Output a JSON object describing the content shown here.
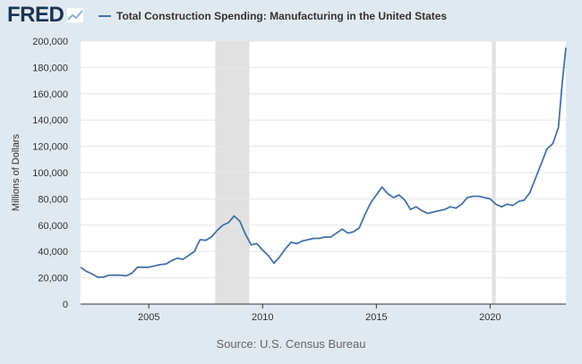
{
  "header": {
    "logo_text": "FRED",
    "logo_icon": "line-chart-icon"
  },
  "colors": {
    "background": "#e1e9f0",
    "plot_background": "#ffffff",
    "series": "#4572a7",
    "recession": "#e1e1e1",
    "logo": "#1b3451"
  },
  "source_text": "Source: U.S. Census Bureau",
  "chart_data": {
    "type": "line",
    "title": "Total Construction Spending: Manufacturing in the United States",
    "xlabel": "",
    "ylabel": "Millions of Dollars",
    "xlim": [
      2002.0,
      2023.33
    ],
    "ylim": [
      0,
      200000
    ],
    "x_ticks": [
      2005,
      2010,
      2015,
      2020
    ],
    "x_tick_labels": [
      "2005",
      "2010",
      "2015",
      "2020"
    ],
    "y_ticks": [
      0,
      20000,
      40000,
      60000,
      80000,
      100000,
      120000,
      140000,
      160000,
      180000,
      200000
    ],
    "y_tick_labels": [
      "0",
      "20,000",
      "40,000",
      "60,000",
      "80,000",
      "100,000",
      "120,000",
      "140,000",
      "160,000",
      "180,000",
      "200,000"
    ],
    "grid": "horizontal",
    "legend": "top",
    "recessions": [
      [
        2007.92,
        2009.42
      ],
      [
        2020.08,
        2020.25
      ]
    ],
    "series": [
      {
        "name": "Total Construction Spending: Manufacturing in the United States",
        "x": [
          2002.0,
          2002.25,
          2002.5,
          2002.75,
          2003.0,
          2003.25,
          2003.5,
          2003.75,
          2004.0,
          2004.25,
          2004.5,
          2004.75,
          2005.0,
          2005.25,
          2005.5,
          2005.75,
          2006.0,
          2006.25,
          2006.5,
          2006.75,
          2007.0,
          2007.25,
          2007.5,
          2007.75,
          2008.0,
          2008.25,
          2008.5,
          2008.75,
          2009.0,
          2009.25,
          2009.5,
          2009.75,
          2010.0,
          2010.25,
          2010.5,
          2010.75,
          2011.0,
          2011.25,
          2011.5,
          2011.75,
          2012.0,
          2012.25,
          2012.5,
          2012.75,
          2013.0,
          2013.25,
          2013.5,
          2013.75,
          2014.0,
          2014.25,
          2014.5,
          2014.75,
          2015.0,
          2015.25,
          2015.5,
          2015.75,
          2016.0,
          2016.25,
          2016.5,
          2016.75,
          2017.0,
          2017.25,
          2017.5,
          2017.75,
          2018.0,
          2018.25,
          2018.5,
          2018.75,
          2019.0,
          2019.25,
          2019.5,
          2019.75,
          2020.0,
          2020.25,
          2020.5,
          2020.75,
          2021.0,
          2021.25,
          2021.5,
          2021.75,
          2022.0,
          2022.25,
          2022.5,
          2022.75,
          2023.0,
          2023.17,
          2023.33
        ],
        "values": [
          28000,
          25000,
          23000,
          20500,
          20500,
          22000,
          22000,
          22000,
          21500,
          23500,
          28000,
          28000,
          28000,
          29000,
          30000,
          30500,
          33000,
          35000,
          34000,
          37000,
          40000,
          49000,
          48500,
          51000,
          56000,
          60000,
          62000,
          67000,
          63000,
          53000,
          45000,
          46000,
          41000,
          37000,
          31000,
          36000,
          42000,
          47000,
          46000,
          48000,
          49000,
          50000,
          50000,
          51000,
          51000,
          54000,
          57000,
          54000,
          55000,
          58000,
          68000,
          77000,
          83000,
          89000,
          84000,
          81000,
          83000,
          79000,
          72000,
          74000,
          71000,
          69000,
          70000,
          71000,
          72000,
          74000,
          73000,
          76000,
          81000,
          82000,
          82000,
          81000,
          80000,
          76000,
          74000,
          76000,
          75000,
          78000,
          79000,
          85000,
          96000,
          107000,
          118000,
          122000,
          134000,
          168000,
          195000
        ]
      }
    ]
  }
}
